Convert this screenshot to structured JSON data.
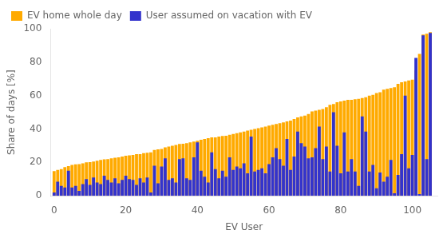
{
  "chart_data": {
    "type": "bar",
    "xlabel": "EV User",
    "ylabel": "Share of days [%]",
    "x": [
      0,
      1,
      2,
      3,
      4,
      5,
      6,
      7,
      8,
      9,
      10,
      11,
      12,
      13,
      14,
      15,
      16,
      17,
      18,
      19,
      20,
      21,
      22,
      23,
      24,
      25,
      26,
      27,
      28,
      29,
      30,
      31,
      32,
      33,
      34,
      35,
      36,
      37,
      38,
      39,
      40,
      41,
      42,
      43,
      44,
      45,
      46,
      47,
      48,
      49,
      50,
      51,
      52,
      53,
      54,
      55,
      56,
      57,
      58,
      59,
      60,
      61,
      62,
      63,
      64,
      65,
      66,
      67,
      68,
      69,
      70,
      71,
      72,
      73,
      74,
      75,
      76,
      77,
      78,
      79,
      80,
      81,
      82,
      83,
      84,
      85,
      86,
      87,
      88,
      89,
      90,
      91,
      92,
      93,
      94,
      95,
      96,
      97,
      98,
      99,
      100,
      101,
      102,
      103,
      104,
      105
    ],
    "series": [
      {
        "name": "EV home whole day",
        "color": "#ffaa00",
        "values": [
          14.8,
          15.5,
          16.0,
          17.2,
          17.8,
          18.5,
          18.8,
          19.0,
          19.5,
          20.0,
          20.2,
          20.5,
          21.0,
          21.5,
          21.8,
          22.0,
          22.5,
          22.8,
          23.0,
          23.5,
          24.0,
          24.2,
          24.5,
          25.0,
          25.0,
          25.5,
          25.8,
          26.0,
          27.5,
          27.8,
          28.0,
          29.0,
          29.5,
          30.0,
          30.5,
          31.0,
          31.2,
          31.5,
          32.0,
          32.5,
          33.0,
          33.5,
          34.0,
          34.5,
          35.0,
          35.0,
          35.5,
          35.8,
          36.0,
          36.5,
          37.0,
          37.5,
          38.0,
          38.5,
          39.0,
          39.5,
          40.0,
          40.5,
          41.0,
          41.5,
          42.0,
          42.5,
          43.0,
          43.5,
          44.0,
          44.5,
          45.0,
          46.0,
          47.0,
          47.5,
          48.0,
          49.0,
          50.5,
          51.0,
          51.5,
          52.0,
          53.0,
          54.5,
          55.0,
          56.0,
          56.5,
          57.0,
          57.5,
          57.5,
          57.8,
          58.0,
          58.5,
          59.0,
          60.0,
          60.5,
          61.5,
          62.0,
          63.5,
          64.0,
          64.5,
          65.0,
          67.0,
          68.0,
          68.5,
          69.0,
          69.5,
          75.0,
          85.0,
          96.5,
          97.0,
          98.0
        ]
      },
      {
        "name": "User assumed on vacation with EV",
        "color": "#3333cc",
        "values": [
          2.0,
          8.5,
          6.0,
          5.0,
          15.0,
          5.0,
          6.0,
          3.0,
          7.0,
          10.0,
          6.5,
          11.0,
          8.0,
          7.0,
          12.0,
          9.5,
          8.0,
          10.5,
          7.5,
          9.5,
          12.0,
          10.0,
          9.5,
          6.5,
          10.5,
          8.0,
          11.0,
          2.0,
          18.0,
          7.5,
          17.5,
          22.5,
          9.5,
          10.5,
          8.0,
          22.0,
          22.5,
          10.5,
          9.5,
          23.0,
          32.0,
          15.0,
          11.5,
          8.0,
          26.0,
          16.0,
          10.5,
          15.0,
          11.5,
          23.0,
          15.5,
          17.5,
          16.5,
          19.5,
          13.5,
          35.5,
          14.5,
          15.5,
          16.5,
          13.5,
          19.0,
          23.0,
          28.5,
          22.0,
          18.0,
          34.0,
          15.5,
          23.5,
          38.5,
          31.5,
          29.5,
          22.5,
          23.0,
          28.5,
          41.5,
          22.0,
          29.5,
          14.5,
          50.0,
          30.0,
          13.5,
          38.0,
          14.5,
          22.0,
          14.5,
          6.0,
          47.5,
          38.5,
          14.5,
          18.5,
          4.5,
          14.0,
          8.5,
          11.5,
          21.5,
          1.5,
          12.5,
          25.0,
          60.0,
          16.5,
          24.5,
          82.5,
          1.0,
          96.0,
          22.0,
          97.5
        ]
      }
    ],
    "xlim": [
      -1,
      107
    ],
    "xticks": [
      0,
      20,
      40,
      60,
      80,
      100
    ],
    "ylim": [
      0,
      100
    ],
    "yticks": [
      0,
      20,
      40,
      60,
      80,
      100
    ],
    "grid": false,
    "legend": "upper left",
    "stacked": false
  }
}
